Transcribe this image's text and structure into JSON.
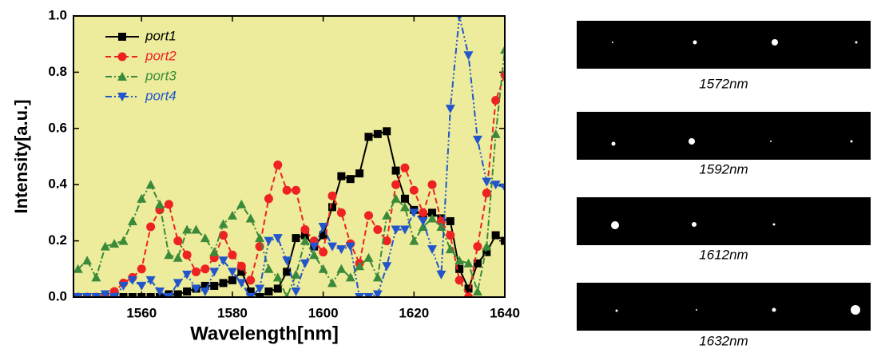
{
  "chart_data": {
    "type": "line",
    "xlabel": "Wavelength[nm]",
    "ylabel": "Intensity[a.u.]",
    "x": [
      1546,
      1548,
      1550,
      1552,
      1554,
      1556,
      1558,
      1560,
      1562,
      1564,
      1566,
      1568,
      1570,
      1572,
      1574,
      1576,
      1578,
      1580,
      1582,
      1584,
      1586,
      1588,
      1590,
      1592,
      1594,
      1596,
      1598,
      1600,
      1602,
      1604,
      1606,
      1608,
      1610,
      1612,
      1614,
      1616,
      1618,
      1620,
      1622,
      1624,
      1626,
      1628,
      1630,
      1632,
      1634,
      1636,
      1638,
      1640
    ],
    "series": [
      {
        "name": "port1",
        "color": "#000000",
        "marker": "square",
        "linestyle": "solid",
        "values": [
          0,
          0,
          0,
          0,
          0,
          0,
          0,
          0,
          0,
          0,
          0.01,
          0.01,
          0.02,
          0.03,
          0.04,
          0.04,
          0.05,
          0.06,
          0.09,
          0.02,
          0,
          0.02,
          0.03,
          0.09,
          0.21,
          0.22,
          0.18,
          0.22,
          0.32,
          0.43,
          0.42,
          0.44,
          0.57,
          0.58,
          0.59,
          0.45,
          0.35,
          0.31,
          0.29,
          0.3,
          0.28,
          0.27,
          0.1,
          0.03,
          0.12,
          0.16,
          0.22,
          0.2
        ]
      },
      {
        "name": "port2",
        "color": "#ee2222",
        "marker": "circle",
        "linestyle": "dash",
        "values": [
          0,
          0,
          0,
          0,
          0.02,
          0.05,
          0.07,
          0.1,
          0.25,
          0.31,
          0.33,
          0.2,
          0.15,
          0.09,
          0.1,
          0.14,
          0.22,
          0.15,
          0.11,
          0.06,
          0.18,
          0.35,
          0.47,
          0.38,
          0.38,
          0.24,
          0.2,
          0.16,
          0.36,
          0.3,
          0.19,
          0.12,
          0.29,
          0.24,
          0.2,
          0.4,
          0.46,
          0.38,
          0.3,
          0.4,
          0.27,
          0.22,
          0.06,
          0,
          0.18,
          0.37,
          0.7,
          0.79
        ]
      },
      {
        "name": "port3",
        "color": "#3a8a3a",
        "marker": "triangle-up",
        "linestyle": "dashdot",
        "values": [
          0.1,
          0.13,
          0.07,
          0.18,
          0.19,
          0.2,
          0.27,
          0.35,
          0.4,
          0.33,
          0.15,
          0.14,
          0.24,
          0.24,
          0.21,
          0.16,
          0.26,
          0.29,
          0.33,
          0.28,
          0.21,
          0.1,
          0.07,
          0,
          0.08,
          0.2,
          0.15,
          0.1,
          0.05,
          0.1,
          0.07,
          0.11,
          0.14,
          0.07,
          0.29,
          0.35,
          0.32,
          0.2,
          0.25,
          0.28,
          0.25,
          0.17,
          0.13,
          0.12,
          0.02,
          0.18,
          0.58,
          0.88
        ]
      },
      {
        "name": "port4",
        "color": "#2255cc",
        "marker": "triangle-down",
        "linestyle": "dashdotdot",
        "values": [
          0,
          0,
          0,
          0.01,
          0,
          0.04,
          0.06,
          0.04,
          0.06,
          0.02,
          0,
          0.05,
          0.08,
          0.03,
          0.02,
          0.09,
          0.13,
          0.09,
          0.05,
          0,
          0.03,
          0.2,
          0.21,
          0.13,
          0.02,
          0.12,
          0.18,
          0.25,
          0.18,
          0.17,
          0.18,
          0,
          0,
          0.01,
          0.11,
          0.24,
          0.24,
          0.3,
          0.27,
          0.17,
          0.08,
          0.67,
          1.0,
          0.86,
          0.56,
          0.41,
          0.4,
          0.39
        ]
      }
    ],
    "xlim": [
      1545,
      1640
    ],
    "ylim": [
      0,
      1
    ],
    "xticks": [
      1560,
      1580,
      1600,
      1620,
      1640
    ],
    "yticks": [
      {
        "value": 0,
        "label": "0.0"
      },
      0.2,
      0.4,
      0.6,
      0.8,
      {
        "value": 1,
        "label": "1.0"
      }
    ],
    "background": "#ecec9c",
    "legend": "upper-left"
  },
  "panels": [
    {
      "caption": "1572nm"
    },
    {
      "caption": "1592nm"
    },
    {
      "caption": "1612nm"
    },
    {
      "caption": "1632nm"
    }
  ]
}
